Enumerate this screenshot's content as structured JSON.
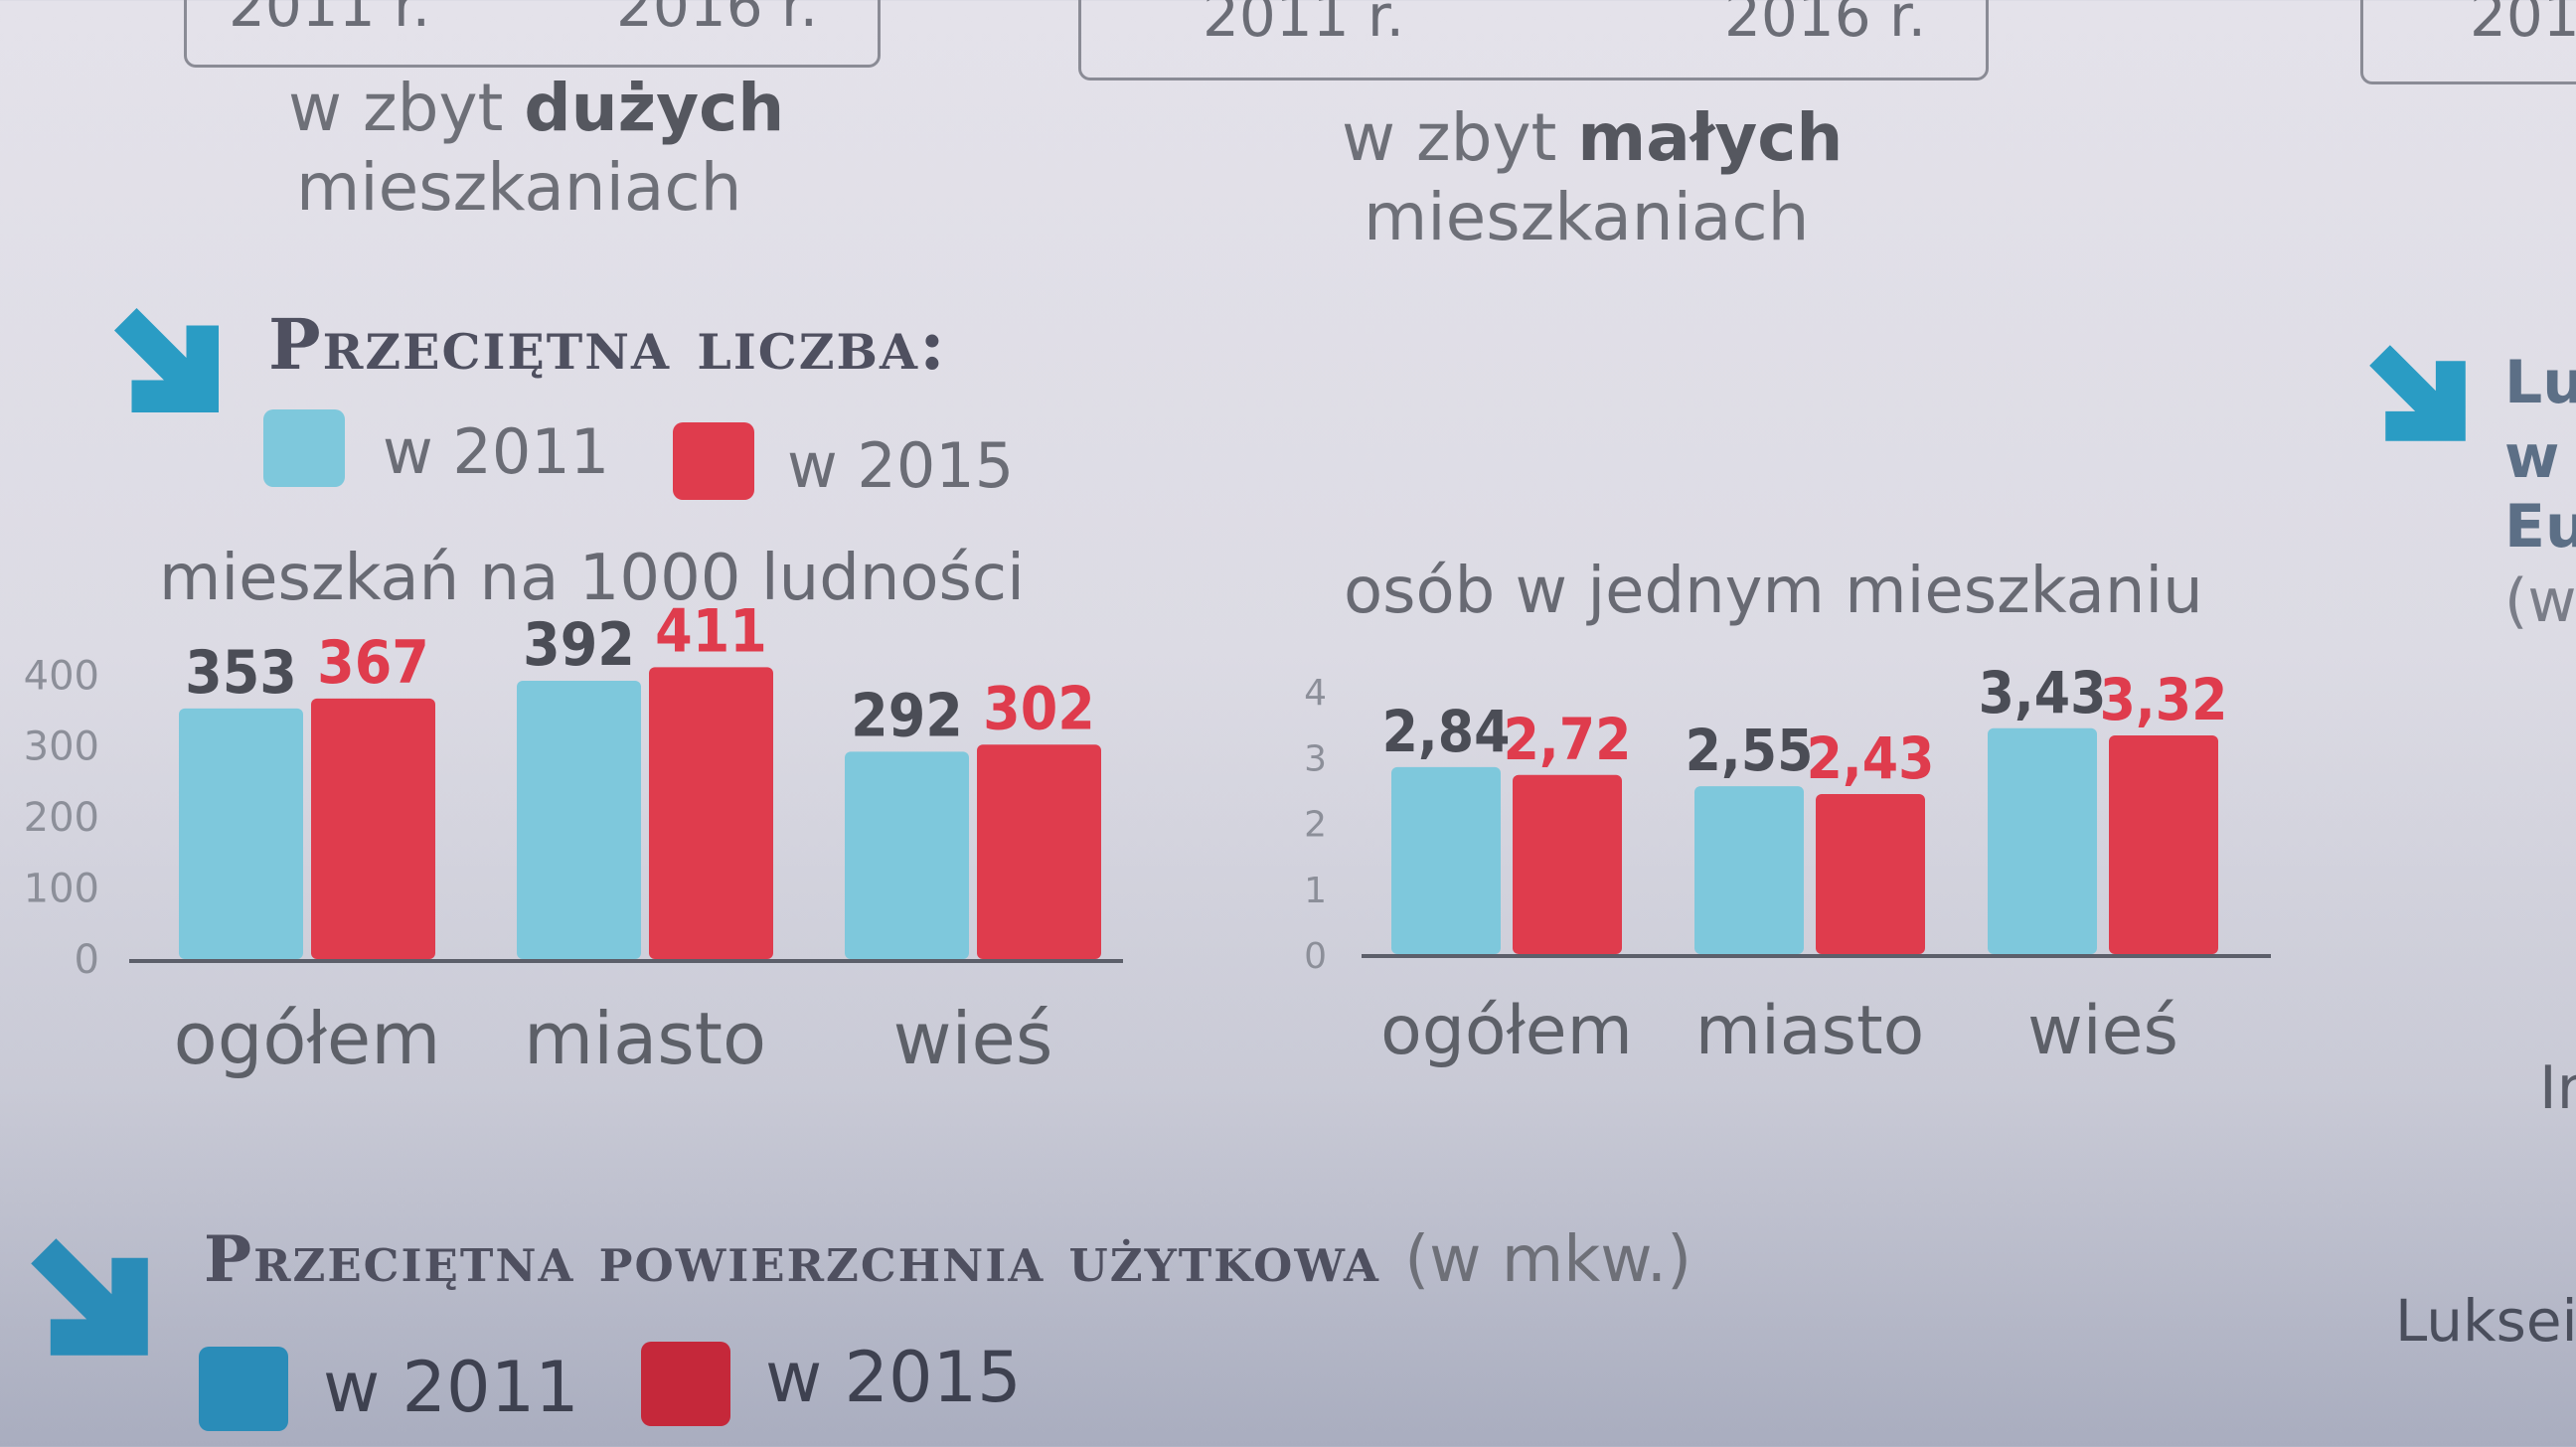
{
  "colors": {
    "year_2011": "#7ec8dc",
    "year_2015": "#df3c4d",
    "accent_arrow": "#2a9cc4"
  },
  "icons": {
    "section_arrow": "arrow-down-right-icon"
  },
  "top_brackets": [
    {
      "years": [
        "2011 r.",
        "2016 r."
      ]
    },
    {
      "years": [
        "2011 r.",
        "2016 r."
      ]
    },
    {
      "years": [
        "201"
      ]
    }
  ],
  "descriptions": [
    {
      "prefix": "w zbyt ",
      "bold": "dużych",
      "line2": "mieszkaniach"
    },
    {
      "prefix": "w zbyt ",
      "bold": "małych",
      "line2": "mieszkaniach"
    }
  ],
  "section1": {
    "title": "Przeciętna liczba:",
    "legend": [
      {
        "label": "w 2011"
      },
      {
        "label": "w 2015"
      }
    ]
  },
  "section2": {
    "title": "Przeciętna powierzchnia użytkowa",
    "unit": "(w mkw.)",
    "legend": [
      {
        "label": "w 2011"
      },
      {
        "label": "w 2015"
      }
    ]
  },
  "right_edge_text": [
    "Lu",
    "w",
    "Eu",
    "(w",
    "Ir",
    "Luksei"
  ],
  "chart_data": [
    {
      "type": "bar",
      "title": "mieszkań na 1000 ludności",
      "categories": [
        "ogółem",
        "miasto",
        "wieś"
      ],
      "series": [
        {
          "name": "w 2011",
          "values": [
            353,
            392,
            292
          ],
          "labels": [
            "353",
            "392",
            "292"
          ]
        },
        {
          "name": "w 2015",
          "values": [
            367,
            411,
            302
          ],
          "labels": [
            "367",
            "411",
            "302"
          ]
        }
      ],
      "yticks": [
        "0",
        "100",
        "200",
        "300",
        "400"
      ],
      "ylim": [
        0,
        420
      ],
      "grid": false,
      "legend": "top-left"
    },
    {
      "type": "bar",
      "title": "osób w jednym mieszkaniu",
      "categories": [
        "ogółem",
        "miasto",
        "wieś"
      ],
      "series": [
        {
          "name": "w 2011",
          "values": [
            2.84,
            2.55,
            3.43
          ],
          "labels": [
            "2,84",
            "2,55",
            "3,43"
          ]
        },
        {
          "name": "w 2015",
          "values": [
            2.72,
            2.43,
            3.32
          ],
          "labels": [
            "2,72",
            "2,43",
            "3,32"
          ]
        }
      ],
      "yticks": [
        "0",
        "1",
        "2",
        "3",
        "4"
      ],
      "ylim": [
        0,
        4
      ],
      "grid": false,
      "legend": "top-left"
    }
  ]
}
